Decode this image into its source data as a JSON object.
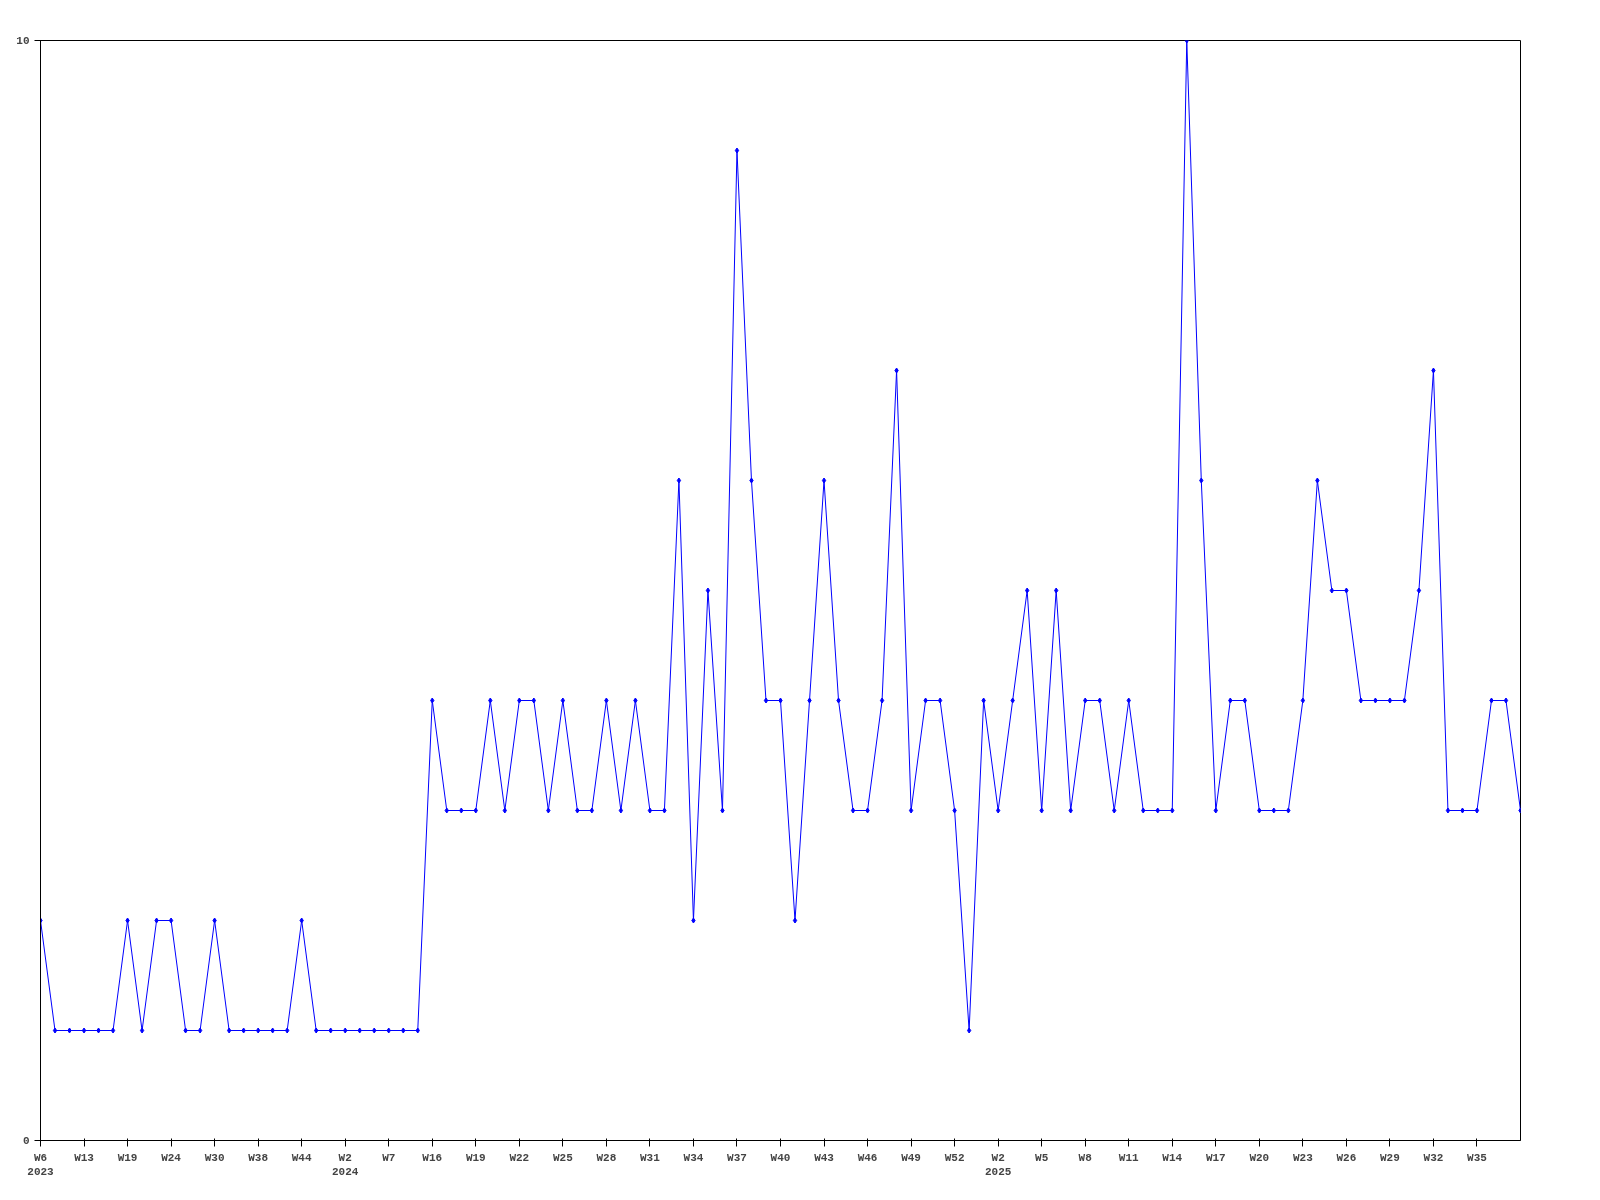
{
  "chart_data": {
    "type": "line",
    "categories": [
      "W6\n2023",
      null,
      null,
      "W13",
      null,
      null,
      "W19",
      null,
      null,
      "W24",
      null,
      null,
      "W30",
      null,
      null,
      "W38",
      null,
      null,
      "W44",
      null,
      null,
      "W2\n2024",
      null,
      null,
      "W7",
      null,
      null,
      "W16",
      null,
      null,
      "W19",
      null,
      null,
      "W22",
      null,
      null,
      "W25",
      null,
      null,
      "W28",
      null,
      null,
      "W31",
      null,
      null,
      "W34",
      null,
      null,
      "W37",
      null,
      null,
      "W40",
      null,
      null,
      "W43",
      null,
      null,
      "W46",
      null,
      null,
      "W49",
      null,
      null,
      "W52",
      null,
      null,
      "W2\n2025",
      null,
      null,
      "W5",
      null,
      null,
      "W8",
      null,
      null,
      "W11",
      null,
      null,
      "W14",
      null,
      null,
      "W17",
      null,
      null,
      "W20",
      null,
      null,
      "W23",
      null,
      null,
      "W26",
      null,
      null,
      "W29",
      null,
      null,
      "W32",
      null,
      null,
      "W35",
      null,
      null,
      null
    ],
    "series": [
      {
        "color": "#0000ff",
        "values": [
          2,
          1,
          1,
          1,
          1,
          1,
          2,
          1,
          2,
          2,
          1,
          1,
          2,
          1,
          1,
          1,
          1,
          1,
          2,
          1,
          1,
          1,
          1,
          1,
          1,
          1,
          1,
          4,
          3,
          3,
          3,
          4,
          3,
          4,
          4,
          3,
          4,
          3,
          3,
          4,
          3,
          4,
          3,
          3,
          6,
          2,
          5,
          3,
          9,
          6,
          4,
          4,
          2,
          4,
          6,
          4,
          3,
          3,
          4,
          7,
          3,
          4,
          4,
          3,
          1,
          4,
          3,
          4,
          5,
          3,
          5,
          3,
          4,
          4,
          3,
          4,
          3,
          3,
          3,
          10,
          6,
          3,
          4,
          4,
          3,
          3,
          3,
          4,
          6,
          5,
          5,
          4,
          4,
          4,
          4,
          5,
          7,
          3,
          3,
          3,
          4,
          4,
          3
        ]
      }
    ],
    "ylim": [
      0,
      10
    ],
    "yticks": [
      0,
      10
    ],
    "grid": false,
    "marker": "diamond",
    "line_style": "solid"
  }
}
